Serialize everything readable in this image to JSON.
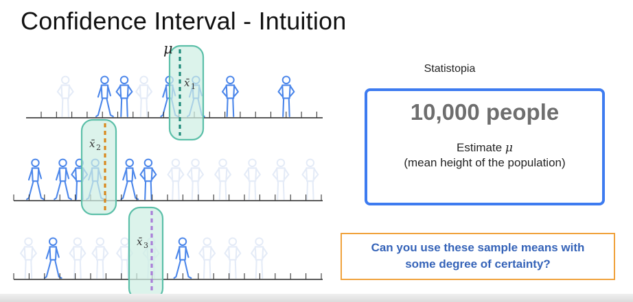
{
  "title": "Confidence Interval - Intuition",
  "mu_symbol": "μ",
  "rows": [
    {
      "sample_label": "x̄",
      "sample_index": "1",
      "dashed_color": "#1f8a7a",
      "people": [
        {
          "pos": 4,
          "faded": true,
          "pose": "stand"
        },
        {
          "pos": 8,
          "faded": false,
          "pose": "walk"
        },
        {
          "pos": 10,
          "faded": false,
          "pose": "stand"
        },
        {
          "pos": 12,
          "faded": true,
          "pose": "stand"
        },
        {
          "pos": 14.6,
          "faded": false,
          "pose": "walk"
        },
        {
          "pos": 17.3,
          "faded": false,
          "pose": "walk"
        },
        {
          "pos": 20.8,
          "faded": false,
          "pose": "stand"
        },
        {
          "pos": 26.5,
          "faded": false,
          "pose": "stand"
        }
      ]
    },
    {
      "sample_label": "x̄",
      "sample_index": "2",
      "dashed_color": "#d9891e",
      "people": [
        {
          "pos": 2.2,
          "faded": false,
          "pose": "walk"
        },
        {
          "pos": 5,
          "faded": false,
          "pose": "walk"
        },
        {
          "pos": 6.7,
          "faded": false,
          "pose": "stand"
        },
        {
          "pos": 8.3,
          "faded": false,
          "pose": "walk"
        },
        {
          "pos": 11.8,
          "faded": false,
          "pose": "walk"
        },
        {
          "pos": 13.7,
          "faded": false,
          "pose": "stand"
        },
        {
          "pos": 16.5,
          "faded": true,
          "pose": "stand"
        },
        {
          "pos": 18.5,
          "faded": true,
          "pose": "stand"
        },
        {
          "pos": 21.3,
          "faded": true,
          "pose": "stand"
        },
        {
          "pos": 24.3,
          "faded": true,
          "pose": "stand"
        },
        {
          "pos": 27.2,
          "faded": true,
          "pose": "stand"
        },
        {
          "pos": 30.2,
          "faded": true,
          "pose": "stand"
        }
      ]
    },
    {
      "sample_label": "x̄",
      "sample_index": "3",
      "dashed_color": "#a97ed8",
      "people": [
        {
          "pos": 1.5,
          "faded": true,
          "pose": "stand"
        },
        {
          "pos": 4,
          "faded": false,
          "pose": "walk"
        },
        {
          "pos": 6.5,
          "faded": true,
          "pose": "stand"
        },
        {
          "pos": 8.8,
          "faded": true,
          "pose": "stand"
        },
        {
          "pos": 11.3,
          "faded": true,
          "pose": "stand"
        },
        {
          "pos": 14,
          "faded": true,
          "pose": "stand"
        },
        {
          "pos": 17.2,
          "faded": false,
          "pose": "walk"
        },
        {
          "pos": 19.7,
          "faded": true,
          "pose": "stand"
        },
        {
          "pos": 22.3,
          "faded": true,
          "pose": "stand"
        },
        {
          "pos": 25,
          "faded": true,
          "pose": "stand"
        }
      ]
    }
  ],
  "population": {
    "location": "Statistopia",
    "count": "10,000 people",
    "estimate_prefix": "Estimate",
    "estimate_desc": "(mean height of the population)"
  },
  "question": {
    "line1": "Can you use these sample means with",
    "line2": "some degree of certainty?"
  },
  "colors": {
    "person": "#4b86ea",
    "person_faded": "#e4ebf7",
    "box_border": "#3d7bf0",
    "question_border": "#f0a23c",
    "question_text": "#3563b8",
    "sample_fill": "#cfeee3",
    "sample_stroke": "#5bbfa8"
  }
}
